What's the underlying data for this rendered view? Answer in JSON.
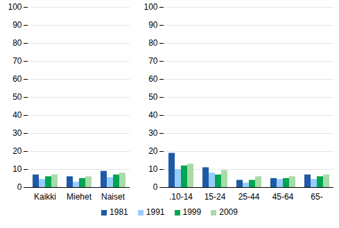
{
  "chart_data": {
    "type": "bar",
    "categories": [
      "Kaikki",
      "Miehet",
      "Naiset",
      null,
      ".10-14",
      "15-24",
      "25-44",
      "45-64",
      "65-"
    ],
    "series": [
      {
        "name": "1981",
        "color": "#1f5aa6",
        "values": [
          7,
          6,
          9,
          null,
          19,
          11,
          4,
          5,
          7
        ]
      },
      {
        "name": "1991",
        "color": "#99ccff",
        "values": [
          4.5,
          3,
          5.5,
          null,
          10,
          8,
          2.5,
          4.5,
          4.5
        ]
      },
      {
        "name": "1999",
        "color": "#00a651",
        "values": [
          6,
          5,
          7,
          null,
          12,
          7,
          4,
          5,
          6
        ]
      },
      {
        "name": "2009",
        "color": "#a8dba8",
        "values": [
          7,
          6,
          8,
          null,
          13,
          9.5,
          6,
          6,
          7
        ]
      }
    ],
    "ylim": [
      0,
      100
    ],
    "yticks": [
      0,
      10,
      20,
      30,
      40,
      50,
      60,
      70,
      80,
      90,
      100
    ],
    "grid": true,
    "legend": "bottom"
  }
}
